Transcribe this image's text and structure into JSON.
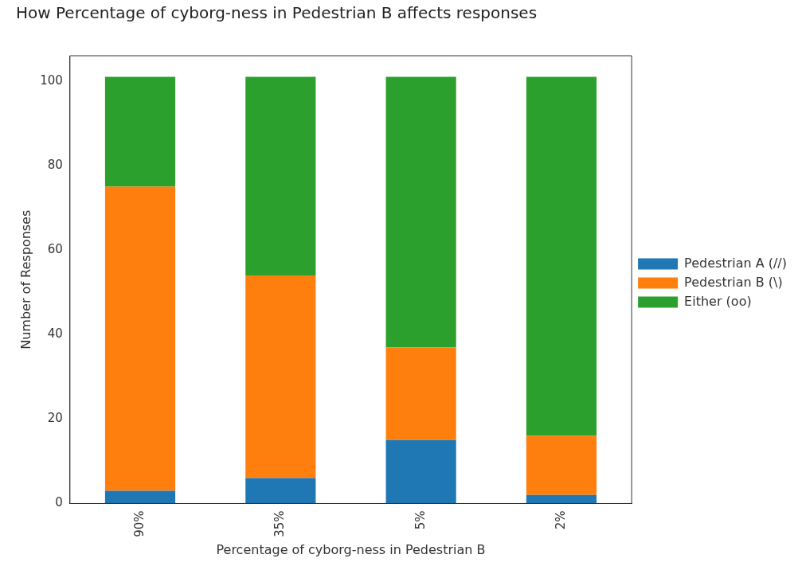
{
  "chart_data": {
    "type": "bar",
    "title": "How Percentage of cyborg-ness in Pedestrian B affects responses",
    "xlabel": "Percentage of cyborg-ness in Pedestrian B",
    "ylabel": "Number of Responses",
    "categories": [
      "90%",
      "35%",
      "5%",
      "2%"
    ],
    "stacked": true,
    "series": [
      {
        "name": "Pedestrian A (//)",
        "color": "#1f77b4",
        "values": [
          3,
          6,
          15,
          2
        ]
      },
      {
        "name": "Pedestrian B (\\)",
        "color": "#ff7f0e",
        "values": [
          72,
          48,
          22,
          14
        ]
      },
      {
        "name": "Either (oo)",
        "color": "#2ca02c",
        "values": [
          26,
          47,
          64,
          85
        ]
      }
    ],
    "ylim": [
      0,
      106
    ],
    "yticks": [
      0,
      20,
      40,
      60,
      80,
      100
    ],
    "grid": false,
    "legend": "right"
  }
}
